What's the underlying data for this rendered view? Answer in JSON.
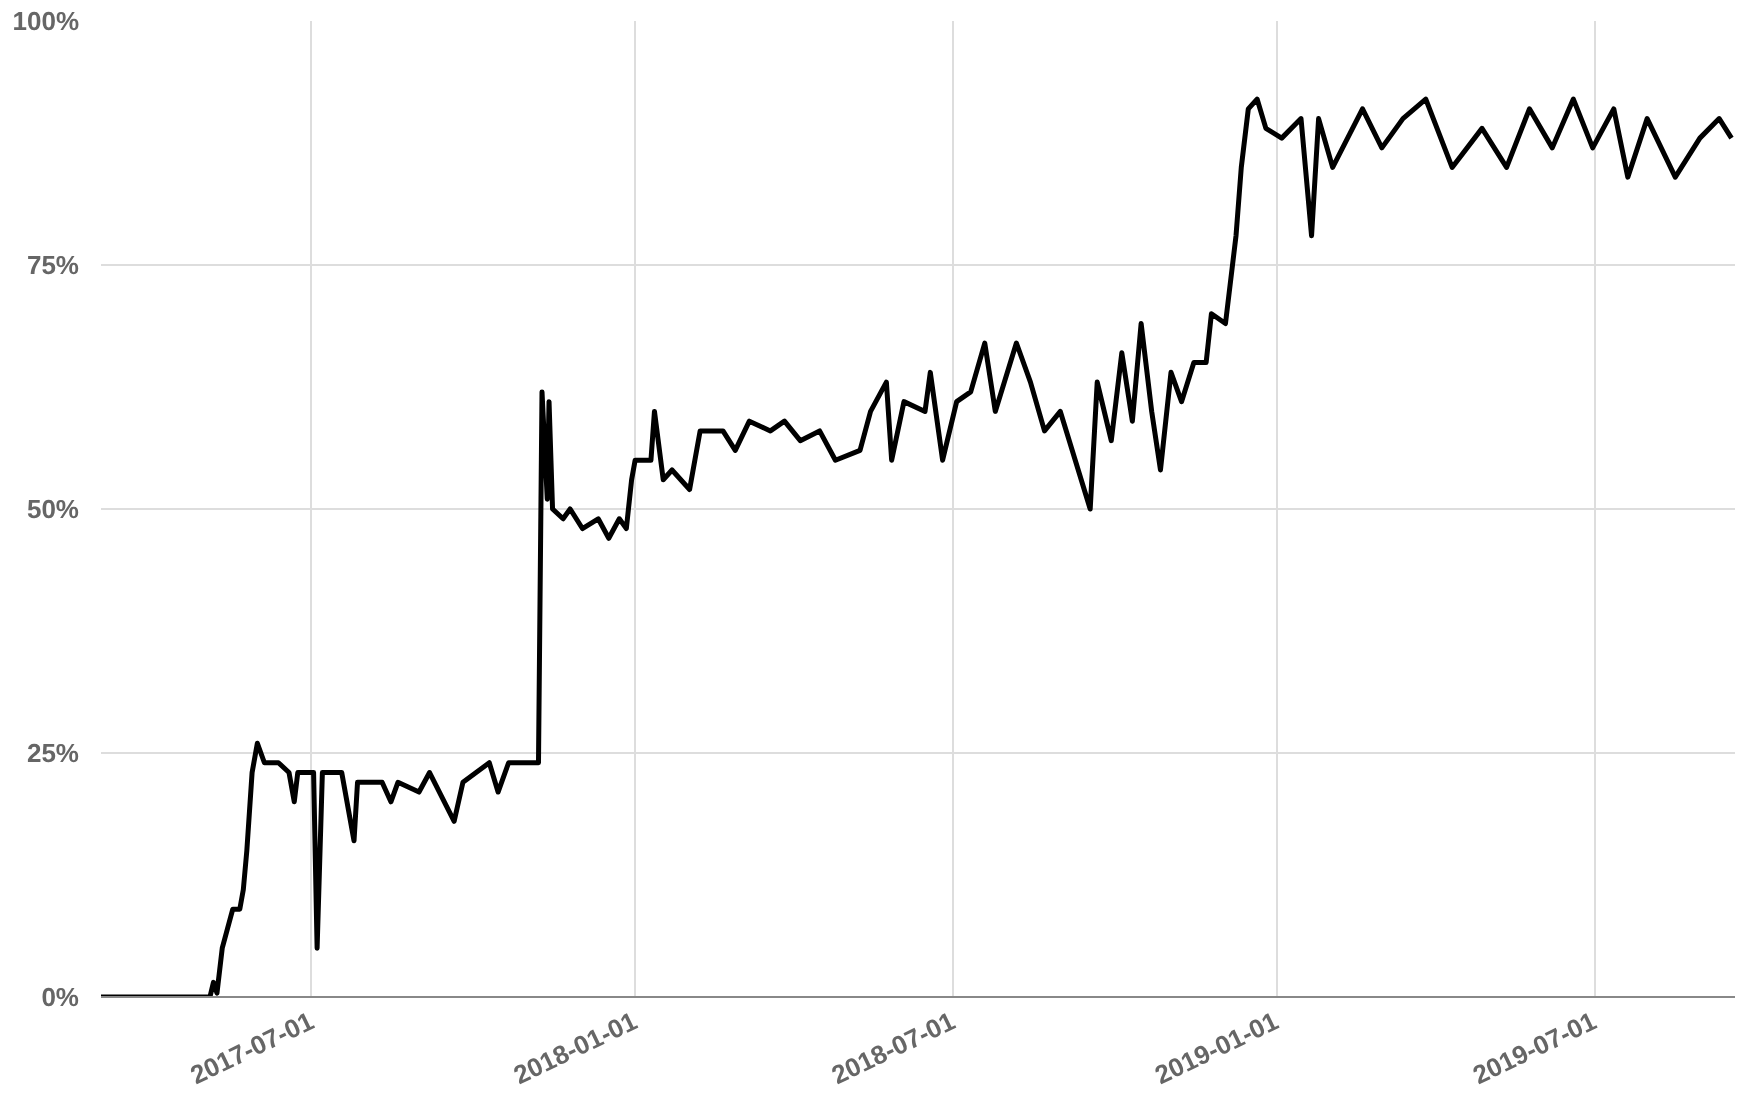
{
  "chart_data": {
    "type": "line",
    "xlim": [
      "2017-03-03",
      "2019-09-19"
    ],
    "ylim": [
      0,
      100
    ],
    "xticks": [
      "2017-07-01",
      "2018-01-01",
      "2018-07-01",
      "2019-01-01",
      "2019-07-01"
    ],
    "yticks": [
      {
        "value": 0,
        "label": "0%"
      },
      {
        "value": 25,
        "label": "25%"
      },
      {
        "value": 50,
        "label": "50%"
      },
      {
        "value": 75,
        "label": "75%"
      },
      {
        "value": 100,
        "label": "100%"
      }
    ],
    "grid": true,
    "marker": "none",
    "line_style": "solid",
    "x": [
      "2017-03-03",
      "2017-04-11",
      "2017-05-04",
      "2017-05-06",
      "2017-05-08",
      "2017-05-11",
      "2017-05-14",
      "2017-05-17",
      "2017-05-21",
      "2017-05-23",
      "2017-05-25",
      "2017-05-28",
      "2017-05-31",
      "2017-06-04",
      "2017-06-12",
      "2017-06-18",
      "2017-06-21",
      "2017-06-23",
      "2017-06-29",
      "2017-07-02",
      "2017-07-04",
      "2017-07-07",
      "2017-07-18",
      "2017-07-25",
      "2017-07-27",
      "2017-08-10",
      "2017-08-15",
      "2017-08-19",
      "2017-08-31",
      "2017-09-06",
      "2017-09-20",
      "2017-09-25",
      "2017-10-10",
      "2017-10-15",
      "2017-10-21",
      "2017-11-01",
      "2017-11-07",
      "2017-11-09",
      "2017-11-12",
      "2017-11-13",
      "2017-11-15",
      "2017-11-21",
      "2017-11-25",
      "2017-12-02",
      "2017-12-11",
      "2017-12-17",
      "2017-12-23",
      "2017-12-27",
      "2017-12-30",
      "2018-01-01",
      "2018-01-10",
      "2018-01-12",
      "2018-01-17",
      "2018-01-22",
      "2018-02-01",
      "2018-02-07",
      "2018-02-20",
      "2018-02-27",
      "2018-03-07",
      "2018-03-19",
      "2018-03-27",
      "2018-04-05",
      "2018-04-16",
      "2018-04-25",
      "2018-05-09",
      "2018-05-15",
      "2018-05-24",
      "2018-05-27",
      "2018-06-03",
      "2018-06-15",
      "2018-06-18",
      "2018-06-25",
      "2018-07-03",
      "2018-07-11",
      "2018-07-19",
      "2018-07-25",
      "2018-08-06",
      "2018-08-14",
      "2018-08-22",
      "2018-08-31",
      "2018-09-17",
      "2018-09-21",
      "2018-09-29",
      "2018-10-05",
      "2018-10-11",
      "2018-10-16",
      "2018-10-22",
      "2018-10-27",
      "2018-11-02",
      "2018-11-08",
      "2018-11-15",
      "2018-11-22",
      "2018-11-25",
      "2018-12-03",
      "2018-12-09",
      "2018-12-12",
      "2018-12-16",
      "2018-12-21",
      "2018-12-26",
      "2019-01-04",
      "2019-01-15",
      "2019-01-21",
      "2019-01-25",
      "2019-02-02",
      "2019-02-19",
      "2019-03-02",
      "2019-03-14",
      "2019-03-27",
      "2019-04-11",
      "2019-04-28",
      "2019-05-12",
      "2019-05-25",
      "2019-06-07",
      "2019-06-19",
      "2019-06-30",
      "2019-07-12",
      "2019-07-20",
      "2019-07-31",
      "2019-08-16",
      "2019-08-30",
      "2019-09-10",
      "2019-09-17"
    ],
    "series": [
      {
        "color": "#000000",
        "values": [
          0,
          0,
          0,
          1.5,
          0.4,
          5,
          7,
          9,
          9,
          11,
          15,
          23,
          26,
          24,
          24,
          23,
          20,
          23,
          23,
          23,
          5,
          23,
          23,
          16,
          22,
          22,
          20,
          22,
          21,
          23,
          18,
          22,
          24,
          21,
          24,
          24,
          24,
          62,
          51,
          61,
          50,
          49,
          50,
          48,
          49,
          47,
          49,
          48,
          53,
          55,
          55,
          60,
          53,
          54,
          52,
          58,
          58,
          56,
          59,
          58,
          59,
          57,
          58,
          55,
          56,
          60,
          63,
          55,
          61,
          60,
          64,
          55,
          61,
          62,
          67,
          60,
          67,
          63,
          58,
          60,
          50,
          63,
          57,
          66,
          59,
          69,
          60,
          54,
          64,
          61,
          65,
          65,
          70,
          69,
          78,
          85,
          91,
          92,
          89,
          88,
          90,
          78,
          90,
          85,
          91,
          87,
          90,
          92,
          85,
          89,
          85,
          91,
          87,
          92,
          87,
          91,
          84,
          90,
          84,
          88,
          90,
          88
        ]
      }
    ]
  }
}
